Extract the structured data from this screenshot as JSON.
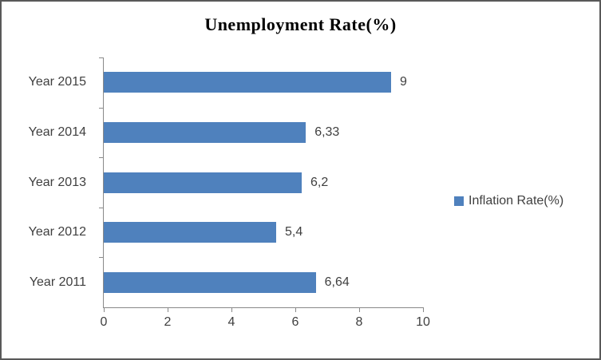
{
  "window": {
    "background": "#FFFFFF",
    "border_color": "#595959"
  },
  "chart_data": {
    "type": "bar",
    "orientation": "horizontal",
    "title": "Unemployment Rate(%)",
    "categories": [
      "Year 2015",
      "Year 2014",
      "Year 2013",
      "Year 2012",
      "Year 2011"
    ],
    "series": [
      {
        "name": "Inflation Rate(%)",
        "values": [
          9,
          6.33,
          6.2,
          5.4,
          6.64
        ],
        "value_labels": [
          "9",
          "6,33",
          "6,2",
          "5,4",
          "6,64"
        ],
        "color": "#4F81BD"
      }
    ],
    "xlabel": "",
    "ylabel": "",
    "xlim": [
      0,
      10
    ],
    "x_ticks": [
      "0",
      "2",
      "4",
      "6",
      "8",
      "10"
    ],
    "grid": false,
    "axis_color": "#898989",
    "label_color": "#3F3F3F",
    "legend": {
      "label": "Inflation Rate(%)",
      "position": "right",
      "marker_color": "#4F81BD"
    }
  }
}
